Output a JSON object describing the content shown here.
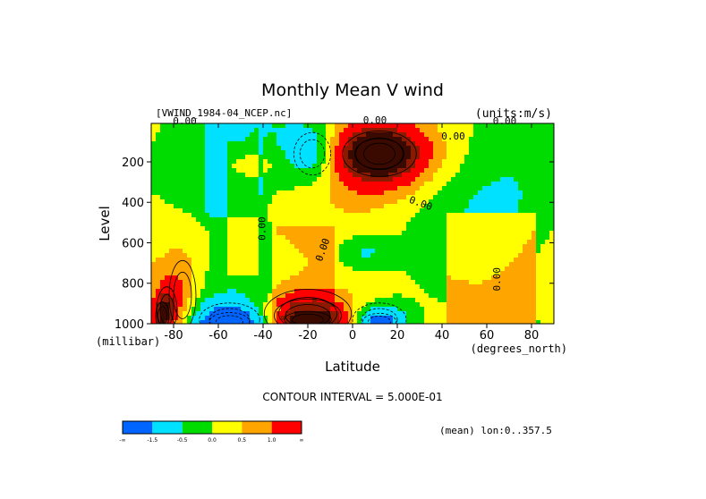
{
  "colors": {
    "bins": [
      "#0064ff",
      "#00e1ff",
      "#00dc00",
      "#ffff00",
      "#ffa500",
      "#ff0000"
    ],
    "dark": [
      "#8b1a00",
      "#3a0a00"
    ],
    "contour": "#000000"
  },
  "chart_data": {
    "type": "contour",
    "title": "Monthly Mean V wind",
    "file_label": "[VWIND_1984-04_NCEP.nc]",
    "units_label": "(units:m/s)",
    "xlabel": "Latitude",
    "xunits": "(degrees_north)",
    "ylabel": "Level",
    "yunits": "(millibar)",
    "xlim": [
      -90,
      90
    ],
    "ylim": [
      1000,
      10
    ],
    "x_ticks": [
      -80,
      -60,
      -40,
      -20,
      0,
      20,
      40,
      60,
      80
    ],
    "y_ticks": [
      200,
      400,
      600,
      800,
      1000
    ],
    "footer": "CONTOUR INTERVAL = 5.000E-01",
    "mean_label": "(mean) lon:0..357.5",
    "colorbar_labels": [
      "-∞",
      "-1.5",
      "-0.5",
      "0.0",
      "0.5",
      "1.0",
      "∞"
    ],
    "contour_labels": [
      {
        "text": "0.00",
        "x": -75,
        "y": 15,
        "angle": 0
      },
      {
        "text": "0.00",
        "x": 45,
        "y": 90,
        "angle": 0
      },
      {
        "text": "0.00",
        "x": 68,
        "y": 15,
        "angle": 0
      },
      {
        "text": "0.00",
        "x": 30,
        "y": 420,
        "angle": 20
      },
      {
        "text": "0.00",
        "x": -39,
        "y": 530,
        "angle": -90
      },
      {
        "text": "0.00",
        "x": -12,
        "y": 640,
        "angle": -70
      },
      {
        "text": "0.00",
        "x": 66,
        "y": 780,
        "angle": -90
      },
      {
        "text": "0.00",
        "x": 10,
        "y": 10,
        "angle": 0
      }
    ],
    "features": [
      {
        "value": 1.8,
        "x": 12,
        "y": 160,
        "rx": 14,
        "ry": 105
      },
      {
        "value": 1.2,
        "x": 12,
        "y": 160,
        "rx": 22,
        "ry": 150
      },
      {
        "value": 0.7,
        "x": 10,
        "y": 170,
        "rx": 32,
        "ry": 190
      },
      {
        "value": -0.9,
        "x": -18,
        "y": 160,
        "rx": 11,
        "ry": 140
      },
      {
        "value": -0.6,
        "x": -18,
        "y": 160,
        "rx": 16,
        "ry": 170
      },
      {
        "value": 0.6,
        "x": -46,
        "y": 210,
        "rx": 11,
        "ry": 60
      },
      {
        "value": -0.7,
        "x": 6,
        "y": 640,
        "rx": 10,
        "ry": 80
      },
      {
        "value": 1.7,
        "x": -20,
        "y": 980,
        "rx": 14,
        "ry": 55
      },
      {
        "value": 1.2,
        "x": -20,
        "y": 960,
        "rx": 20,
        "ry": 110
      },
      {
        "value": 0.8,
        "x": -20,
        "y": 950,
        "rx": 26,
        "ry": 160
      },
      {
        "value": -1.8,
        "x": -55,
        "y": 990,
        "rx": 12,
        "ry": 60
      },
      {
        "value": -1.0,
        "x": -55,
        "y": 980,
        "rx": 18,
        "ry": 110
      },
      {
        "value": -1.8,
        "x": 12,
        "y": 990,
        "rx": 10,
        "ry": 55
      },
      {
        "value": -1.0,
        "x": 12,
        "y": 980,
        "rx": 16,
        "ry": 110
      },
      {
        "value": 0.8,
        "x": -76,
        "y": 860,
        "rx": 8,
        "ry": 230
      },
      {
        "value": 1.2,
        "x": -83,
        "y": 930,
        "rx": 6,
        "ry": 150
      },
      {
        "value": 1.8,
        "x": -85,
        "y": 960,
        "rx": 4,
        "ry": 90
      }
    ]
  }
}
